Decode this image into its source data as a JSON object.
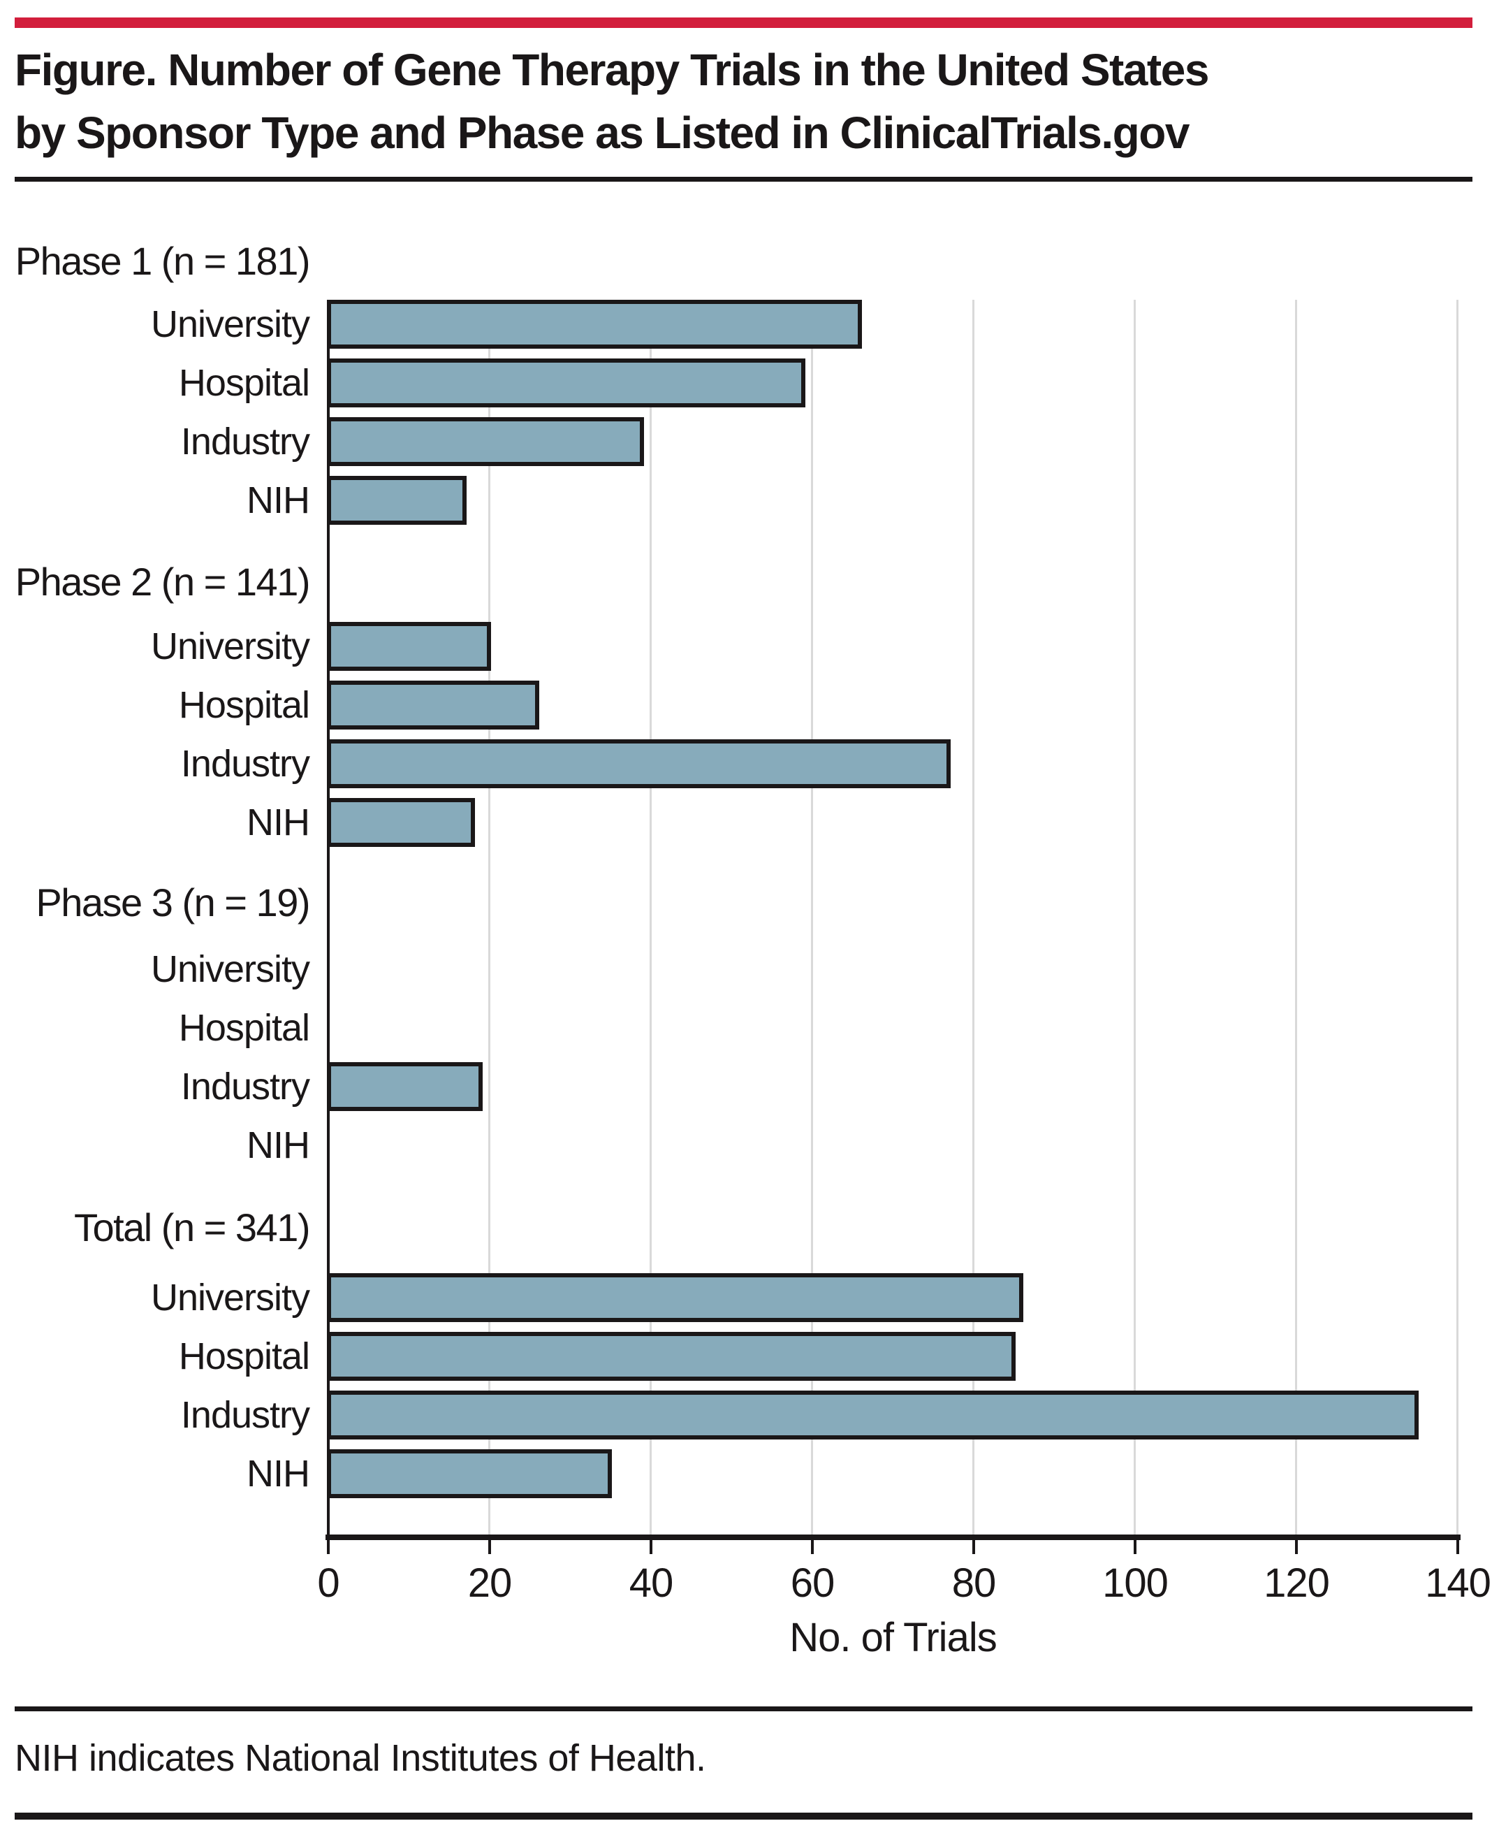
{
  "header": {
    "accent_color": "#d21e3c",
    "title_line1": "Figure. Number of Gene Therapy Trials in the United States",
    "title_line2": "by Sponsor Type and Phase as Listed in ClinicalTrials.gov"
  },
  "chart_data": {
    "type": "bar",
    "orientation": "horizontal",
    "title": "Number of Gene Therapy Trials in the United States by Sponsor Type and Phase as Listed in ClinicalTrials.gov",
    "xlabel": "No. of Trials",
    "ylabel": "",
    "xlim": [
      0,
      140
    ],
    "xticks": [
      0,
      20,
      40,
      60,
      80,
      100,
      120,
      140
    ],
    "grid": "vertical gridlines at each x tick, light gray, behind bars",
    "legend": "none",
    "bar_color": "#87abbb",
    "bar_border_color": "#1a1718",
    "categories": [
      "University",
      "Hospital",
      "Industry",
      "NIH"
    ],
    "groups": [
      {
        "label": "Phase 1 (n = 181)",
        "n": 181,
        "values": [
          66,
          59,
          39,
          17
        ]
      },
      {
        "label": "Phase 2 (n = 141)",
        "n": 141,
        "values": [
          20,
          26,
          77,
          18
        ]
      },
      {
        "label": "Phase 3 (n = 19)",
        "n": 19,
        "values": [
          0,
          0,
          19,
          0
        ]
      },
      {
        "label": "Total (n = 341)",
        "n": 341,
        "values": [
          86,
          85,
          135,
          35
        ]
      }
    ]
  },
  "footnote": {
    "text": "NIH indicates National Institutes of Health."
  }
}
